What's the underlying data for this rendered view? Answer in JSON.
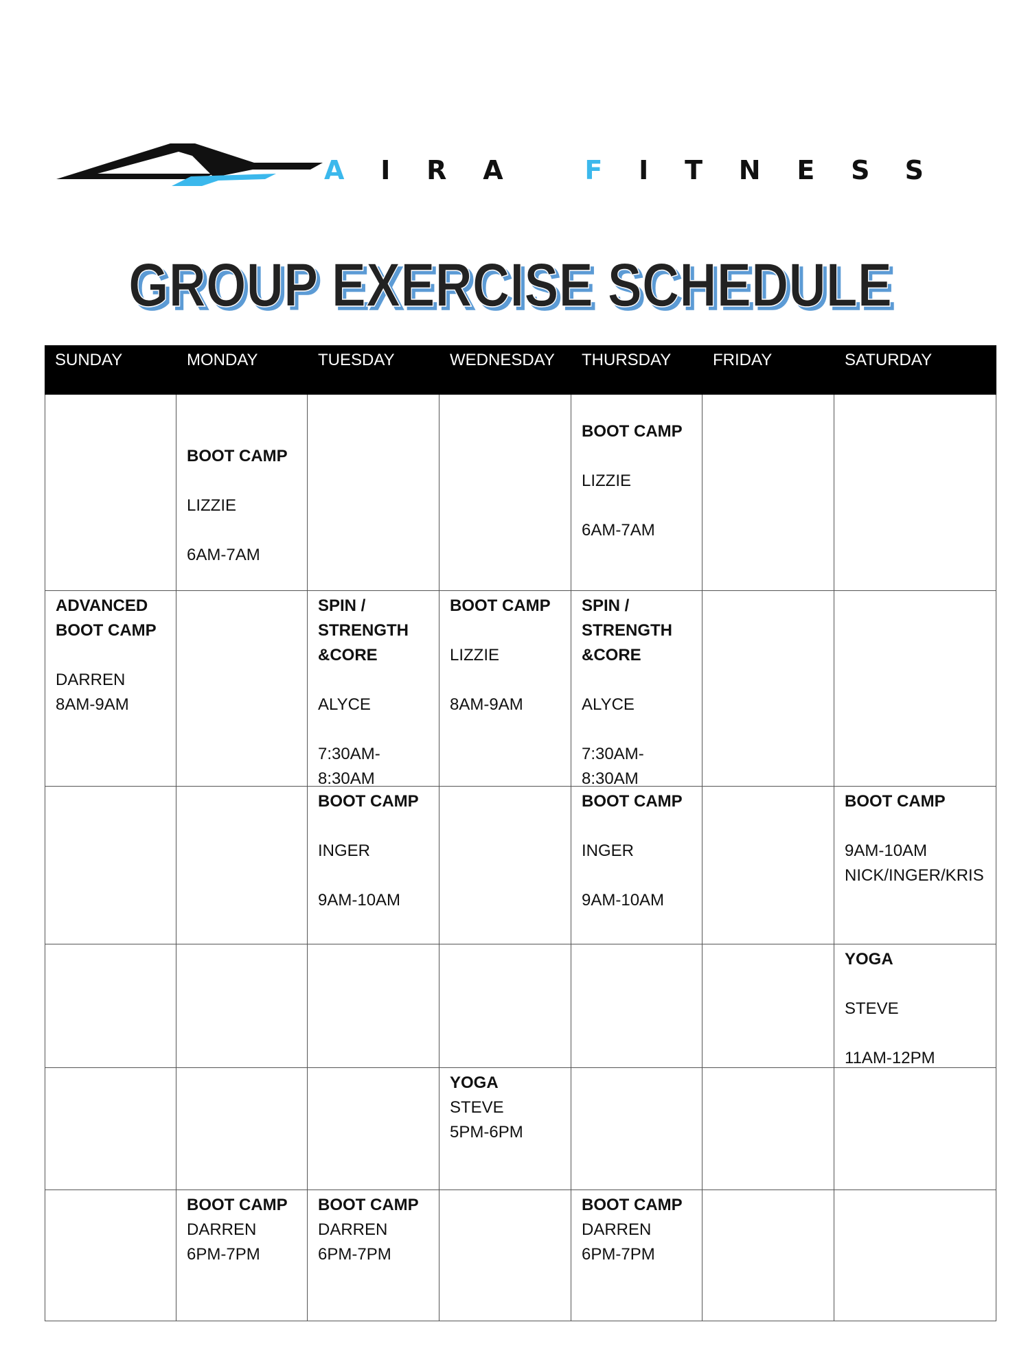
{
  "logo": {
    "brand_text_1": "A",
    "brand_text_2": "IRA ",
    "brand_text_3": "F",
    "brand_text_4": "ITNESS",
    "accent_color": "#3bb8ec",
    "dark_color": "#111111"
  },
  "title": {
    "text": "GROUP EXERCISE SCHEDULE",
    "fill": "#222222",
    "shadow": "#5b9bd5"
  },
  "days": [
    "SUNDAY",
    "MONDAY",
    "TUESDAY",
    "WEDNESDAY",
    "THURSDAY",
    "FRIDAY",
    "SATURDAY"
  ],
  "rows": [
    {
      "cells": [
        [],
        [
          {
            "t": "BOOT CAMP",
            "b": true
          },
          {
            "t": ""
          },
          {
            "t": "LIZZIE"
          },
          {
            "t": ""
          },
          {
            "t": "6AM-7AM"
          }
        ],
        [],
        [],
        [
          {
            "t": "BOOT CAMP",
            "b": true
          },
          {
            "t": ""
          },
          {
            "t": "LIZZIE"
          },
          {
            "t": ""
          },
          {
            "t": "6AM-7AM"
          }
        ],
        [],
        []
      ]
    },
    {
      "cells": [
        [
          {
            "t": "ADVANCED",
            "b": true
          },
          {
            "t": "BOOT CAMP",
            "b": true
          },
          {
            "t": ""
          },
          {
            "t": "DARREN"
          },
          {
            "t": "8AM-9AM"
          }
        ],
        [],
        [
          {
            "t": "SPIN /",
            "b": true
          },
          {
            "t": "STRENGTH",
            "b": true
          },
          {
            "t": "&CORE",
            "b": true
          },
          {
            "t": ""
          },
          {
            "t": "ALYCE"
          },
          {
            "t": ""
          },
          {
            "t": "7:30AM-"
          },
          {
            "t": "8:30AM"
          }
        ],
        [
          {
            "t": "BOOT CAMP",
            "b": true
          },
          {
            "t": ""
          },
          {
            "t": "LIZZIE"
          },
          {
            "t": ""
          },
          {
            "t": "8AM-9AM"
          }
        ],
        [
          {
            "t": "SPIN /",
            "b": true
          },
          {
            "t": "STRENGTH",
            "b": true
          },
          {
            "t": "&CORE",
            "b": true
          },
          {
            "t": ""
          },
          {
            "t": "ALYCE"
          },
          {
            "t": ""
          },
          {
            "t": "7:30AM-"
          },
          {
            "t": "8:30AM"
          }
        ],
        [],
        []
      ]
    },
    {
      "cells": [
        [],
        [],
        [
          {
            "t": "BOOT CAMP",
            "b": true
          },
          {
            "t": ""
          },
          {
            "t": "INGER"
          },
          {
            "t": ""
          },
          {
            "t": "9AM-10AM"
          }
        ],
        [],
        [
          {
            "t": "BOOT CAMP",
            "b": true
          },
          {
            "t": ""
          },
          {
            "t": "INGER"
          },
          {
            "t": ""
          },
          {
            "t": "9AM-10AM"
          }
        ],
        [],
        [
          {
            "t": "BOOT CAMP",
            "b": true
          },
          {
            "t": ""
          },
          {
            "t": "9AM-10AM"
          },
          {
            "t": "NICK/INGER/KRIS"
          }
        ]
      ]
    },
    {
      "cells": [
        [],
        [],
        [],
        [],
        [],
        [],
        [
          {
            "t": "YOGA",
            "b": true
          },
          {
            "t": ""
          },
          {
            "t": "STEVE"
          },
          {
            "t": ""
          },
          {
            "t": "11AM-12PM"
          }
        ]
      ]
    },
    {
      "cells": [
        [],
        [],
        [],
        [
          {
            "t": "YOGA",
            "b": true
          },
          {
            "t": "STEVE"
          },
          {
            "t": "5PM-6PM"
          }
        ],
        [],
        [],
        []
      ]
    },
    {
      "cells": [
        [],
        [
          {
            "t": "BOOT CAMP",
            "b": true
          },
          {
            "t": "DARREN"
          },
          {
            "t": "6PM-7PM"
          }
        ],
        [
          {
            "t": "BOOT CAMP",
            "b": true
          },
          {
            "t": "DARREN"
          },
          {
            "t": "6PM-7PM"
          }
        ],
        [],
        [
          {
            "t": "BOOT CAMP",
            "b": true
          },
          {
            "t": "DARREN"
          },
          {
            "t": "6PM-7PM"
          }
        ],
        [],
        []
      ]
    }
  ]
}
